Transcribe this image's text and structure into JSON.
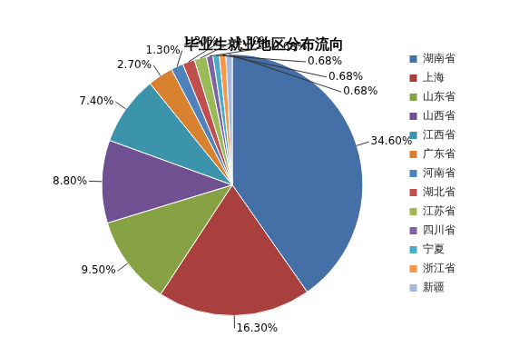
{
  "chart_data": {
    "type": "pie",
    "title": "毕业生就业地区分布流向",
    "categories": [
      "湖南省",
      "上海",
      "山东省",
      "山西省",
      "江西省",
      "广东省",
      "河南省",
      "湖北省",
      "江苏省",
      "四川省",
      "宁夏",
      "浙江省",
      "新疆"
    ],
    "values": [
      34.6,
      16.3,
      9.5,
      8.8,
      7.4,
      2.7,
      1.3,
      1.3,
      1.3,
      0.68,
      0.68,
      0.68,
      0.68
    ],
    "value_labels": [
      "34.60%",
      "16.30%",
      "9.50%",
      "8.80%",
      "7.40%",
      "2.70%",
      "1.30%",
      "1.30%",
      "1.30%",
      "0.68%",
      "0.68%",
      "0.68%",
      "0.68%"
    ],
    "colors": [
      "#4470a7",
      "#a9403e",
      "#86a244",
      "#6f5090",
      "#3c93ac",
      "#d8812e",
      "#4f81bd",
      "#c0504d",
      "#9bbb59",
      "#8064a2",
      "#4bacc6",
      "#f79646",
      "#a7b9da"
    ],
    "data_labels": true,
    "legend": "right"
  }
}
